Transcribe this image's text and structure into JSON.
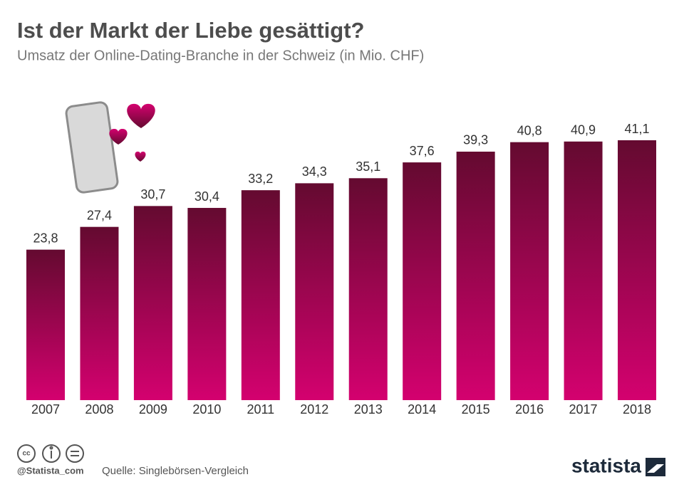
{
  "chart_data": {
    "type": "bar",
    "title": "Ist der Markt der Liebe gesättigt?",
    "subtitle": "Umsatz der Online-Dating-Branche in der Schweiz (in Mio. CHF)",
    "categories": [
      "2007",
      "2008",
      "2009",
      "2010",
      "2011",
      "2012",
      "2013",
      "2014",
      "2015",
      "2016",
      "2017",
      "2018"
    ],
    "values": [
      23.8,
      27.4,
      30.7,
      30.4,
      33.2,
      34.3,
      35.1,
      37.6,
      39.3,
      40.8,
      40.9,
      41.1
    ],
    "value_labels": [
      "23,8",
      "27,4",
      "30,7",
      "30,4",
      "33,2",
      "34,3",
      "35,1",
      "37,6",
      "39,3",
      "40,8",
      "40,9",
      "41,1"
    ],
    "gradient": [
      "#640a30",
      "#d4016f"
    ],
    "credit": "@Statista_com",
    "source": "Quelle: Singlebörsen-Vergleich",
    "brand": "statista"
  }
}
